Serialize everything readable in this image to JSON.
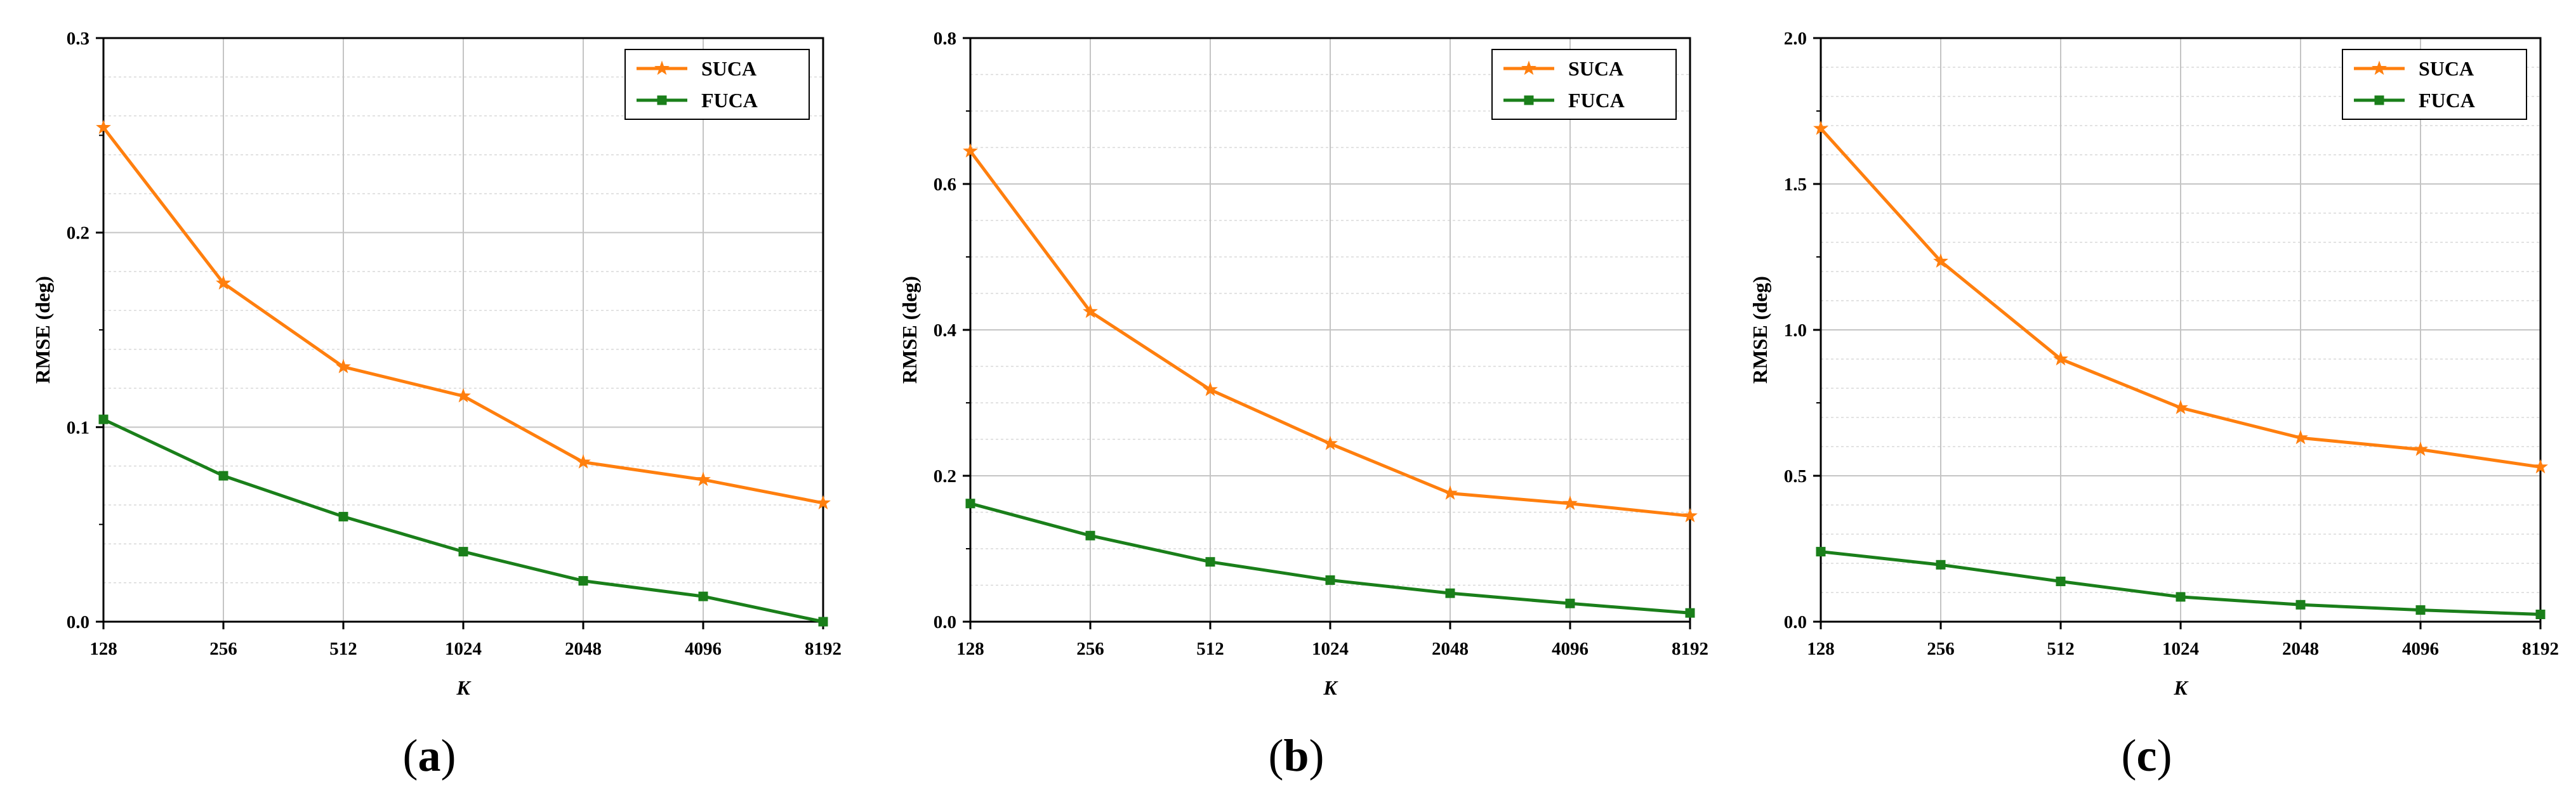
{
  "colors": {
    "suca": "#ff7f0e",
    "fuca": "#1a7f1a"
  },
  "chart_data": [
    {
      "type": "line",
      "caption_open": "(",
      "caption_letter": "a",
      "caption_close": ")",
      "categories": [
        "128",
        "256",
        "512",
        "1024",
        "2048",
        "4096",
        "8192"
      ],
      "xlabel": "K",
      "ylabel": "RMSE (deg)",
      "ylim": [
        0,
        0.3
      ],
      "yticks": [
        "0.0",
        "0.1",
        "0.2",
        "0.3"
      ],
      "ytick_values": [
        0,
        0.1,
        0.2,
        0.3
      ],
      "minor_steps": 5,
      "legend_position": "top-right",
      "series": [
        {
          "name": "SUCA",
          "marker": "star",
          "color_key": "suca",
          "values": [
            0.254,
            0.174,
            0.131,
            0.116,
            0.082,
            0.073,
            0.061
          ]
        },
        {
          "name": "FUCA",
          "marker": "square",
          "color_key": "fuca",
          "values": [
            0.104,
            0.075,
            0.054,
            0.036,
            0.021,
            0.013,
            0.0
          ]
        }
      ]
    },
    {
      "type": "line",
      "caption_open": "(",
      "caption_letter": "b",
      "caption_close": ")",
      "categories": [
        "128",
        "256",
        "512",
        "1024",
        "2048",
        "4096",
        "8192"
      ],
      "xlabel": "K",
      "ylabel": "RMSE (deg)",
      "ylim": [
        0,
        0.8
      ],
      "yticks": [
        "0.0",
        "0.2",
        "0.4",
        "0.6",
        "0.8"
      ],
      "ytick_values": [
        0,
        0.2,
        0.4,
        0.6,
        0.8
      ],
      "minor_steps": 4,
      "legend_position": "top-right",
      "series": [
        {
          "name": "SUCA",
          "marker": "star",
          "color_key": "suca",
          "values": [
            0.645,
            0.425,
            0.318,
            0.244,
            0.176,
            0.162,
            0.145
          ]
        },
        {
          "name": "FUCA",
          "marker": "square",
          "color_key": "fuca",
          "values": [
            0.162,
            0.118,
            0.082,
            0.057,
            0.039,
            0.025,
            0.012
          ]
        }
      ]
    },
    {
      "type": "line",
      "caption_open": "(",
      "caption_letter": "c",
      "caption_close": ")",
      "categories": [
        "128",
        "256",
        "512",
        "1024",
        "2048",
        "4096",
        "8192"
      ],
      "xlabel": "K",
      "ylabel": "RMSE (deg)",
      "ylim": [
        0,
        2.0
      ],
      "yticks": [
        "0.0",
        "0.5",
        "1.0",
        "1.5",
        "2.0"
      ],
      "ytick_values": [
        0,
        0.5,
        1.0,
        1.5,
        2.0
      ],
      "minor_steps": 5,
      "legend_position": "top-right",
      "series": [
        {
          "name": "SUCA",
          "marker": "star",
          "color_key": "suca",
          "values": [
            1.69,
            1.235,
            0.9,
            0.733,
            0.63,
            0.59,
            0.53
          ]
        },
        {
          "name": "FUCA",
          "marker": "square",
          "color_key": "fuca",
          "values": [
            0.24,
            0.195,
            0.138,
            0.085,
            0.058,
            0.04,
            0.025
          ]
        }
      ]
    }
  ]
}
